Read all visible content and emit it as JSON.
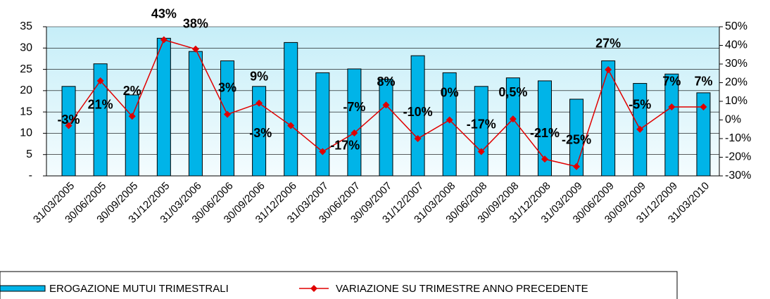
{
  "chart_data": {
    "type": "bar_line",
    "categories": [
      "31/03/2005",
      "30/06/2005",
      "30/09/2005",
      "31/12/2005",
      "31/03/2006",
      "30/06/2006",
      "30/09/2006",
      "31/12/2006",
      "31/03/2007",
      "30/06/2007",
      "30/09/2007",
      "31/12/2007",
      "31/03/2008",
      "30/06/2008",
      "30/09/2008",
      "31/12/2008",
      "31/03/2009",
      "30/06/2009",
      "30/09/2009",
      "31/12/2009",
      "31/03/2010"
    ],
    "series": [
      {
        "name": "EROGAZIONE MUTUI TRIMESTRALI",
        "color": "#00b4e8",
        "type": "bar",
        "values": [
          21,
          26.3,
          19,
          32.3,
          29.2,
          27,
          21,
          31.3,
          24.2,
          25.1,
          22.7,
          28.2,
          24.2,
          21,
          23,
          22.3,
          18,
          27,
          21.7,
          23.9,
          19.5
        ]
      },
      {
        "name": "VARIAZIONE SU TRIMESTRE ANNO PRECEDENTE",
        "color": "#e00000",
        "type": "line",
        "axis": "y2",
        "values": [
          -3,
          21,
          2,
          43,
          38,
          3,
          9,
          -3,
          -17,
          -7,
          8,
          -10,
          0,
          -17,
          0.5,
          -21,
          -25,
          27,
          -5,
          7,
          7
        ],
        "value_labels": [
          "-3%",
          "21%",
          "2%",
          "43%",
          "38%",
          "3%",
          "9%",
          "-3%",
          "-17%",
          "-7%",
          "8%",
          "-10%",
          "0%",
          "-17%",
          "0,5%",
          "-21%",
          "-25%",
          "27%",
          "-5%",
          "7%",
          "7%"
        ]
      }
    ],
    "ylim": [
      0,
      35
    ],
    "yticks": [
      {
        "value": 0,
        "label": "-"
      },
      5,
      10,
      15,
      20,
      25,
      30,
      35
    ],
    "y2lim": [
      -30,
      50
    ],
    "y2ticks": [
      {
        "value": -30,
        "label": "-30%"
      },
      {
        "value": -20,
        "label": "-20%"
      },
      {
        "value": -10,
        "label": "-10%"
      },
      {
        "value": 0,
        "label": "0%"
      },
      {
        "value": 10,
        "label": "10%"
      },
      {
        "value": 20,
        "label": "20%"
      },
      {
        "value": 30,
        "label": "30%"
      },
      {
        "value": 40,
        "label": "40%"
      },
      {
        "value": 50,
        "label": "50%"
      }
    ],
    "legend": "bottom"
  }
}
